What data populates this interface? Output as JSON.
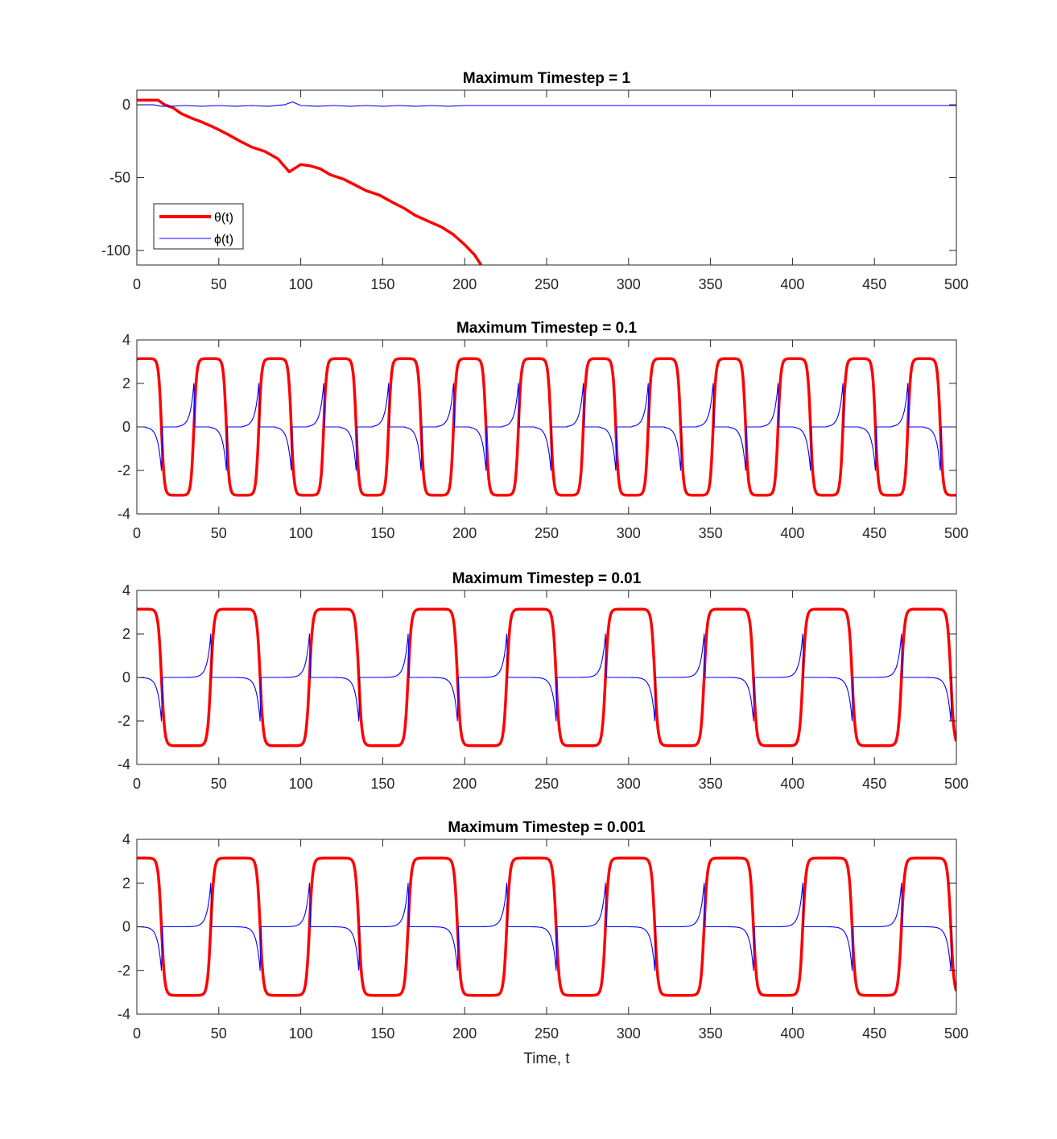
{
  "figure": {
    "xlabel": "Time, t",
    "colors": {
      "theta": "#ff0000",
      "phi": "#0000ff",
      "axes": "#262626"
    }
  },
  "legend": {
    "entries": [
      {
        "label": "θ(t)",
        "color": "#ff0000"
      },
      {
        "label": "ϕ(t)",
        "color": "#0000ff"
      }
    ]
  },
  "chart_data": [
    {
      "type": "line",
      "title": "Maximum Timestep = 1",
      "xlabel": "",
      "ylabel": "",
      "xlim": [
        0,
        500
      ],
      "ylim": [
        -110,
        10
      ],
      "xticks": [
        0,
        50,
        100,
        150,
        200,
        250,
        300,
        350,
        400,
        450,
        500
      ],
      "yticks": [
        0,
        -50,
        -100
      ],
      "legend": "bottom-left",
      "series": [
        {
          "name": "θ(t)",
          "color": "#ff0000",
          "x": [
            0,
            13,
            17,
            22,
            27,
            33,
            40,
            48,
            55,
            63,
            70,
            78,
            86,
            93,
            100,
            106,
            112,
            118,
            126,
            133,
            140,
            148,
            156,
            163,
            170,
            178,
            186,
            193,
            200,
            206,
            210
          ],
          "y": [
            3.14,
            3.14,
            0,
            -2,
            -6,
            -9,
            -12,
            -16,
            -20,
            -25,
            -29,
            -32,
            -37,
            -46,
            -41,
            -42,
            -44,
            -48,
            -51,
            -55,
            -59,
            -62,
            -67,
            -71,
            -76,
            -80,
            -84,
            -89,
            -96,
            -103,
            -110
          ]
        },
        {
          "name": "ϕ(t)",
          "color": "#0000ff",
          "x": [
            0,
            10,
            15,
            20,
            30,
            40,
            50,
            60,
            70,
            80,
            90,
            95,
            100,
            110,
            120,
            130,
            140,
            150,
            160,
            170,
            180,
            190,
            200,
            250,
            300,
            350,
            400,
            450,
            500
          ],
          "y": [
            0,
            0,
            -1,
            -1,
            -0.5,
            -1,
            -0.5,
            -1,
            -0.5,
            -1,
            0,
            2,
            -0.5,
            -1,
            -0.5,
            -1,
            -0.5,
            -1,
            -0.5,
            -1,
            -0.5,
            -1,
            -0.5,
            -0.5,
            -0.5,
            -0.5,
            -0.5,
            -0.5,
            -0.5
          ]
        }
      ]
    },
    {
      "type": "line",
      "title": "Maximum Timestep = 0.1",
      "xlabel": "",
      "ylabel": "",
      "xlim": [
        0,
        500
      ],
      "ylim": [
        -4,
        4
      ],
      "xticks": [
        0,
        50,
        100,
        150,
        200,
        250,
        300,
        350,
        400,
        450,
        500
      ],
      "yticks": [
        4,
        2,
        0,
        -2,
        -4
      ],
      "grid": false,
      "series": [
        {
          "name": "θ(t)",
          "color": "#ff0000",
          "waveform": "square",
          "amplitude": 3.14,
          "first_transition": 15,
          "half_period": 19.8,
          "transition_width": 3.5,
          "phase": 0
        },
        {
          "name": "ϕ(t)",
          "color": "#0000ff",
          "waveform": "spikes",
          "spike_peak": 2.0,
          "first_transition": 15,
          "half_period": 19.8,
          "phase": 0
        }
      ]
    },
    {
      "type": "line",
      "title": "Maximum Timestep = 0.01",
      "xlabel": "",
      "ylabel": "",
      "xlim": [
        0,
        500
      ],
      "ylim": [
        -4,
        4
      ],
      "xticks": [
        0,
        50,
        100,
        150,
        200,
        250,
        300,
        350,
        400,
        450,
        500
      ],
      "yticks": [
        4,
        2,
        0,
        -2,
        -4
      ],
      "grid": false,
      "series": [
        {
          "name": "θ(t)",
          "color": "#ff0000",
          "waveform": "square",
          "amplitude": 3.14,
          "first_transition": 15,
          "half_period": 30.1,
          "transition_width": 4,
          "phase": 0
        },
        {
          "name": "ϕ(t)",
          "color": "#0000ff",
          "waveform": "spikes",
          "spike_peak": 2.0,
          "first_transition": 15,
          "half_period": 30.1,
          "phase": 0
        }
      ]
    },
    {
      "type": "line",
      "title": "Maximum Timestep = 0.001",
      "xlabel": "Time, t",
      "ylabel": "",
      "xlim": [
        0,
        500
      ],
      "ylim": [
        -4,
        4
      ],
      "xticks": [
        0,
        50,
        100,
        150,
        200,
        250,
        300,
        350,
        400,
        450,
        500
      ],
      "yticks": [
        4,
        2,
        0,
        -2,
        -4
      ],
      "grid": false,
      "series": [
        {
          "name": "θ(t)",
          "color": "#ff0000",
          "waveform": "square",
          "amplitude": 3.14,
          "first_transition": 15,
          "half_period": 30.1,
          "transition_width": 4,
          "phase": 0
        },
        {
          "name": "ϕ(t)",
          "color": "#0000ff",
          "waveform": "spikes",
          "spike_peak": 2.0,
          "first_transition": 15,
          "half_period": 30.1,
          "phase": 0
        }
      ]
    }
  ]
}
